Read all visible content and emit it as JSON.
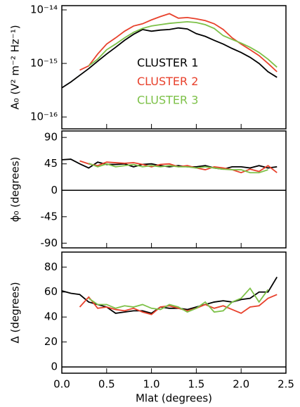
{
  "chart_data": [
    {
      "type": "line",
      "ylabel": "A₀ (V² m⁻² Hz⁻¹)",
      "yscale": "log",
      "grid": false,
      "legend": "center",
      "xlim": [
        0,
        2.5
      ],
      "ylim": [
        6e-17,
        1.2e-14
      ],
      "yticks": [
        {
          "value": 1e-14,
          "label": "10⁻¹⁴"
        },
        {
          "value": 1e-15,
          "label": "10⁻¹⁵"
        },
        {
          "value": 1e-16,
          "label": "10⁻¹⁶"
        }
      ],
      "x": [
        0.0,
        0.1,
        0.2,
        0.3,
        0.4,
        0.5,
        0.6,
        0.7,
        0.8,
        0.9,
        1.0,
        1.1,
        1.2,
        1.3,
        1.4,
        1.5,
        1.6,
        1.7,
        1.8,
        1.9,
        2.0,
        2.1,
        2.2,
        2.3,
        2.4
      ],
      "series": [
        {
          "name": "CLUSTER 1",
          "color": "#000000",
          "values": [
            3.5e-16,
            4.5e-16,
            6e-16,
            8e-16,
            1.1e-15,
            1.5e-15,
            2e-15,
            2.7e-15,
            3.5e-15,
            4.3e-15,
            4e-15,
            4.2e-15,
            4.3e-15,
            4.6e-15,
            4.4e-15,
            3.6e-15,
            3.2e-15,
            2.7e-15,
            2.3e-15,
            1.9e-15,
            1.6e-15,
            1.3e-15,
            1e-15,
            7e-16,
            5.5e-16
          ]
        },
        {
          "name": "CLUSTER 2",
          "color": "#e8412c",
          "values": [
            null,
            null,
            7.5e-16,
            9e-16,
            1.5e-15,
            2.3e-15,
            3e-15,
            4e-15,
            5e-15,
            5.5e-15,
            6.5e-15,
            7.5e-15,
            8.5e-15,
            7e-15,
            7.2e-15,
            6.8e-15,
            6.3e-15,
            5.5e-15,
            4.3e-15,
            3e-15,
            2.3e-15,
            1.8e-15,
            1.4e-15,
            1e-15,
            7e-16
          ]
        },
        {
          "name": "CLUSTER 3",
          "color": "#7dc148",
          "values": [
            null,
            null,
            null,
            9e-16,
            1.2e-15,
            1.8e-15,
            2.3e-15,
            3e-15,
            3.8e-15,
            4.5e-15,
            5e-15,
            5.3e-15,
            5.6e-15,
            5.8e-15,
            6e-15,
            5.8e-15,
            5.3e-15,
            4.5e-15,
            3.3e-15,
            2.8e-15,
            2.4e-15,
            2e-15,
            1.6e-15,
            1.2e-15,
            8.5e-16
          ]
        }
      ]
    },
    {
      "type": "line",
      "ylabel": "ϕ₀ (degrees)",
      "grid": false,
      "xlim": [
        0,
        2.5
      ],
      "ylim": [
        -98,
        101
      ],
      "yticks": [
        90,
        45,
        0,
        -45,
        -90
      ],
      "x": [
        0.0,
        0.1,
        0.2,
        0.3,
        0.4,
        0.5,
        0.6,
        0.7,
        0.8,
        0.9,
        1.0,
        1.1,
        1.2,
        1.3,
        1.4,
        1.5,
        1.6,
        1.7,
        1.8,
        1.9,
        2.0,
        2.1,
        2.2,
        2.3,
        2.4
      ],
      "series": [
        {
          "name": "CLUSTER 1",
          "color": "#000000",
          "values": [
            52,
            53,
            45,
            38,
            48,
            44,
            44,
            45,
            40,
            44,
            45,
            42,
            40,
            42,
            40,
            40,
            42,
            38,
            36,
            40,
            40,
            38,
            42,
            38,
            40
          ]
        },
        {
          "name": "CLUSTER 2",
          "color": "#e8412c",
          "values": [
            null,
            null,
            50,
            45,
            42,
            48,
            47,
            46,
            47,
            44,
            40,
            44,
            45,
            40,
            42,
            38,
            35,
            40,
            38,
            35,
            30,
            36,
            32,
            42,
            30
          ]
        },
        {
          "name": "CLUSTER 3",
          "color": "#7dc148",
          "values": [
            null,
            null,
            null,
            46,
            40,
            45,
            40,
            42,
            44,
            40,
            42,
            40,
            42,
            40,
            40,
            38,
            40,
            38,
            36,
            35,
            35,
            30,
            30,
            35,
            null
          ]
        }
      ]
    },
    {
      "type": "line",
      "ylabel": "Δ (degrees)",
      "xlabel": "Mlat (degrees)",
      "grid": false,
      "xlim": [
        0,
        2.5
      ],
      "ylim": [
        -5,
        92
      ],
      "yticks": [
        0,
        20,
        40,
        60,
        80
      ],
      "xticks": [
        {
          "value": 0,
          "label": "0.0"
        },
        0.5,
        {
          "value": 1,
          "label": "1.0"
        },
        1.5,
        {
          "value": 2,
          "label": "2.0"
        },
        2.5
      ],
      "x": [
        0.0,
        0.1,
        0.2,
        0.3,
        0.4,
        0.5,
        0.6,
        0.7,
        0.8,
        0.9,
        1.0,
        1.1,
        1.2,
        1.3,
        1.4,
        1.5,
        1.6,
        1.7,
        1.8,
        1.9,
        2.0,
        2.1,
        2.2,
        2.3,
        2.4
      ],
      "series": [
        {
          "name": "CLUSTER 1",
          "color": "#000000",
          "values": [
            61,
            59,
            58,
            52,
            50,
            48,
            43,
            44,
            45,
            45,
            43,
            48,
            47,
            47,
            46,
            48,
            50,
            52,
            53,
            52,
            54,
            55,
            60,
            60,
            72
          ]
        },
        {
          "name": "CLUSTER 2",
          "color": "#e8412c",
          "values": [
            null,
            null,
            48,
            56,
            47,
            48,
            46,
            45,
            47,
            44,
            42,
            48,
            49,
            47,
            45,
            47,
            50,
            47,
            49,
            46,
            43,
            48,
            49,
            55,
            58
          ]
        },
        {
          "name": "CLUSTER 3",
          "color": "#7dc148",
          "values": [
            null,
            null,
            null,
            55,
            50,
            50,
            47,
            49,
            48,
            50,
            47,
            46,
            50,
            48,
            44,
            47,
            52,
            44,
            45,
            52,
            55,
            63,
            52,
            62,
            null
          ]
        }
      ]
    }
  ]
}
